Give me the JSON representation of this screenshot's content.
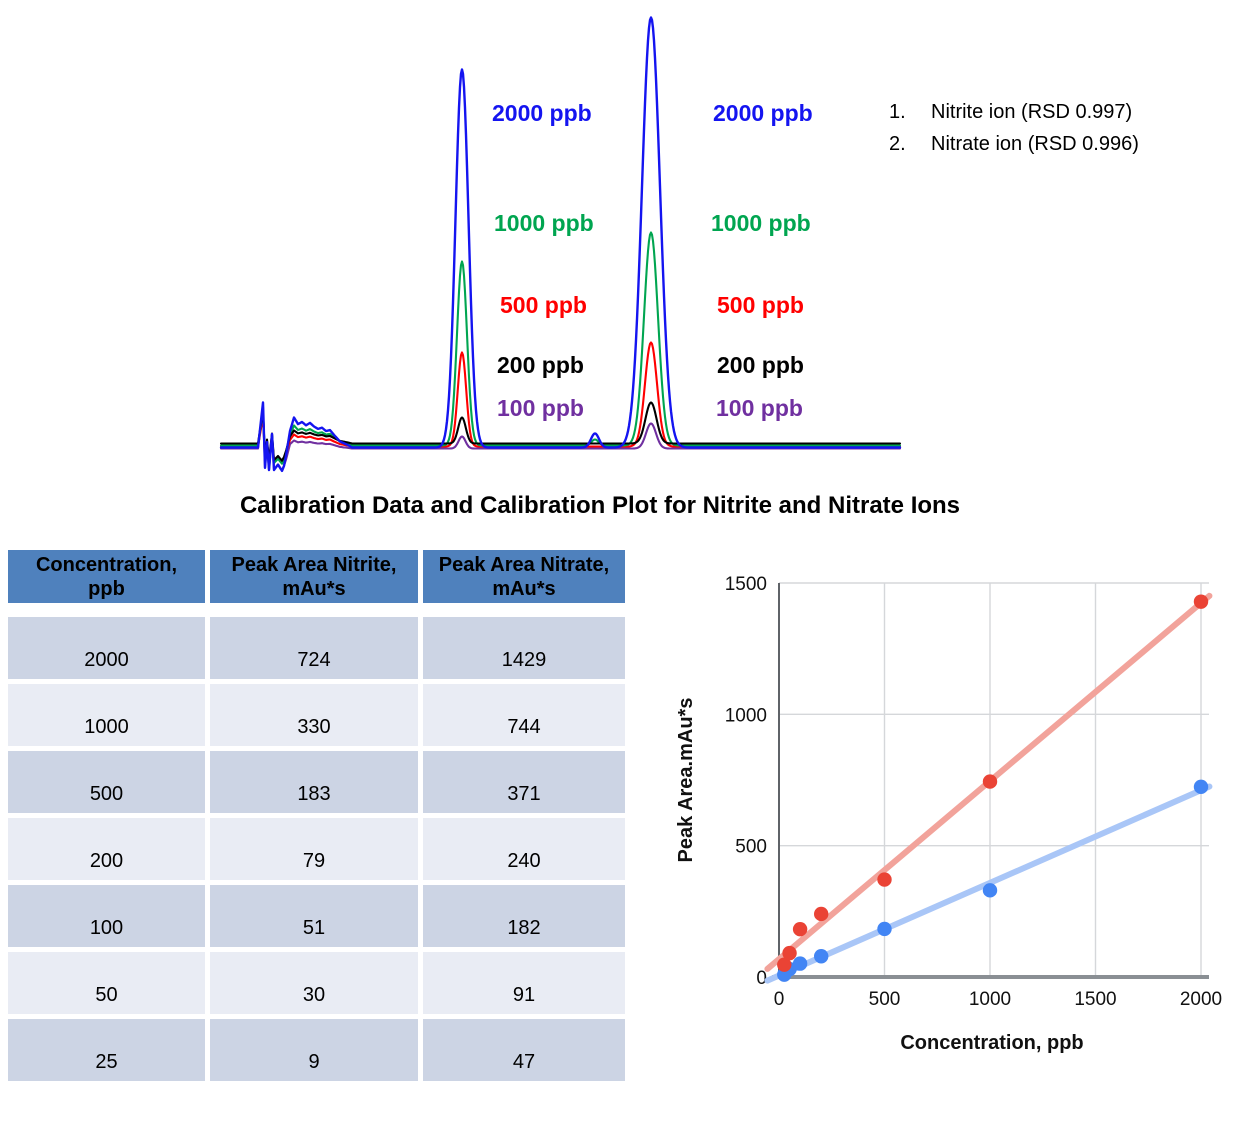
{
  "title": "Calibration Data and Calibration Plot for Nitrite and Nitrate Ions",
  "legend": {
    "items": [
      {
        "number": "1.",
        "label": "Nitrite ion (RSD 0.997)"
      },
      {
        "number": "2.",
        "label": "Nitrate ion (RSD 0.996)"
      }
    ]
  },
  "chromatogram": {
    "peak_labels": [
      {
        "text": "2000 ppb",
        "color": "#1414f0"
      },
      {
        "text": "1000 ppb",
        "color": "#00a550"
      },
      {
        "text": "500 ppb",
        "color": "#ff0000"
      },
      {
        "text": "200 ppb",
        "color": "#000000"
      },
      {
        "text": "100 ppb",
        "color": "#7030a0"
      }
    ]
  },
  "table": {
    "headers": [
      "Concentration,\nppb",
      "Peak Area Nitrite,\nmAu*s",
      "Peak Area Nitrate,\nmAu*s"
    ],
    "header_bg": "#4f81bd",
    "row_colors": [
      "#ccd4e4",
      "#e9ecf4"
    ],
    "rows": [
      [
        "2000",
        "724",
        "1429"
      ],
      [
        "1000",
        "330",
        "744"
      ],
      [
        "500",
        "183",
        "371"
      ],
      [
        "200",
        "79",
        "240"
      ],
      [
        "100",
        "51",
        "182"
      ],
      [
        "50",
        "30",
        "91"
      ],
      [
        "25",
        "9",
        "47"
      ]
    ]
  },
  "chart_data": [
    {
      "type": "line",
      "title": "",
      "description": "Overlaid anion chromatograms; peak 1 = nitrite ion, peak 2 = nitrate ion, at five standard concentrations",
      "series": [
        {
          "name": "2000 ppb",
          "color": "#1414f0",
          "baseline_offset": 4.0,
          "spike_amp": 45,
          "bump_amp": 30,
          "peak1_height": 378,
          "peak1_sigma": 6.5,
          "peak2_height": 430,
          "peak2_sigma": 9.0,
          "mid_bump_height": 14,
          "mid_bump_sigma": 4.0
        },
        {
          "name": "1000 ppb",
          "color": "#00a550",
          "baseline_offset": 2.0,
          "spike_amp": 35,
          "bump_amp": 20,
          "peak1_height": 184,
          "peak1_sigma": 5.0,
          "peak2_height": 213,
          "peak2_sigma": 7.0,
          "mid_bump_height": 6,
          "mid_bump_sigma": 3.5
        },
        {
          "name": "500 ppb",
          "color": "#ff0000",
          "baseline_offset": 3.0,
          "spike_amp": 30,
          "bump_amp": 12,
          "peak1_height": 94,
          "peak1_sigma": 4.2,
          "peak2_height": 104,
          "peak2_sigma": 6.0,
          "mid_bump_height": 0,
          "mid_bump_sigma": 3
        },
        {
          "name": "200 ppb",
          "color": "#000000",
          "baseline_offset": 0.0,
          "spike_amp": 33,
          "bump_amp": 13,
          "peak1_height": 26,
          "peak1_sigma": 3.8,
          "peak2_height": 41,
          "peak2_sigma": 5.5,
          "mid_bump_height": 0,
          "mid_bump_sigma": 3
        },
        {
          "name": "100 ppb",
          "color": "#7030a0",
          "baseline_offset": 5.0,
          "spike_amp": 42,
          "bump_amp": 8,
          "peak1_height": 12,
          "peak1_sigma": 3.5,
          "peak2_height": 25,
          "peak2_sigma": 5.0,
          "mid_bump_height": 0,
          "mid_bump_sigma": 3
        }
      ]
    },
    {
      "type": "scatter",
      "title": "",
      "xlabel": "Concentration, ppb",
      "ylabel": "Peak Area.mAu*s",
      "xlim": [
        0,
        2000
      ],
      "ylim": [
        0,
        1500
      ],
      "x_ticks": [
        0,
        500,
        1000,
        1500,
        2000
      ],
      "y_ticks": [
        0,
        500,
        1000,
        1500
      ],
      "grid": true,
      "trendlines": true,
      "x": [
        25,
        50,
        100,
        200,
        500,
        1000,
        2000
      ],
      "series": [
        {
          "name": "Nitrate",
          "point_color": "#ea4335",
          "trend_color": "#f2a39b",
          "values": [
            47,
            91,
            182,
            240,
            371,
            744,
            1429
          ]
        },
        {
          "name": "Nitrite",
          "point_color": "#4285f4",
          "trend_color": "#a9c6f7",
          "values": [
            9,
            30,
            51,
            79,
            183,
            330,
            724
          ]
        }
      ]
    }
  ]
}
